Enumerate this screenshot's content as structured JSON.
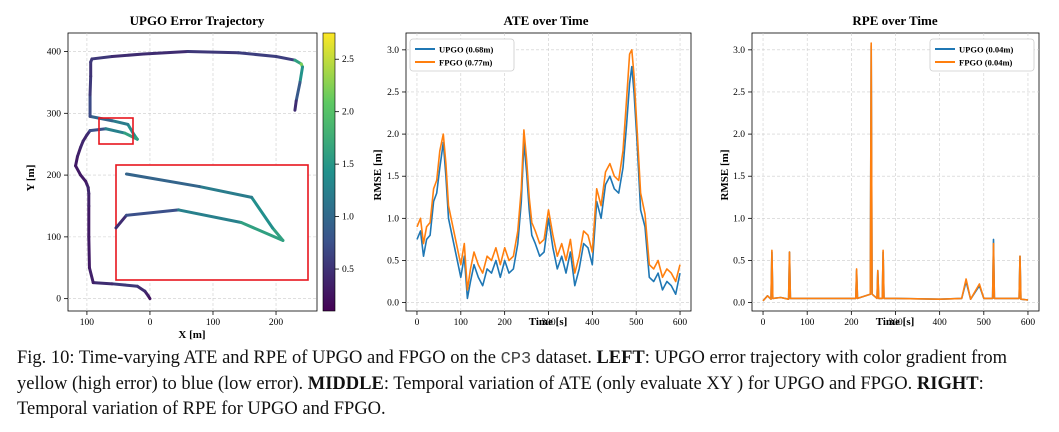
{
  "colors": {
    "upgo": "#1f77b4",
    "fpgo": "#ff7f0e",
    "inset": "#e8161e",
    "grid": "#cccccc"
  },
  "figure": {
    "left": {
      "title": "UPGO Error Trajectory",
      "xlabel": "X [m]",
      "ylabel": "Y [m]",
      "xticks": [
        "100",
        "0",
        "100",
        "200"
      ],
      "yticks": [
        "0",
        "100",
        "200",
        "300",
        "400"
      ],
      "colorbar_ticks": [
        "0.5",
        "1.0",
        "1.5",
        "2.0",
        "2.5"
      ]
    },
    "middle": {
      "title": "ATE over Time",
      "xlabel": "Time [s]",
      "ylabel": "RMSE [m]",
      "legend": [
        "UPGO (0.68m)",
        "FPGO (0.77m)"
      ],
      "xticks": [
        "0",
        "100",
        "200",
        "300",
        "400",
        "500",
        "600"
      ],
      "yticks": [
        "0.0",
        "0.5",
        "1.0",
        "1.5",
        "2.0",
        "2.5",
        "3.0"
      ]
    },
    "right": {
      "title": "RPE over Time",
      "xlabel": "Time [s]",
      "ylabel": "RMSE [m]",
      "legend": [
        "UPGO (0.04m)",
        "FPGO (0.04m)"
      ],
      "xticks": [
        "0",
        "100",
        "200",
        "300",
        "400",
        "500",
        "600"
      ],
      "yticks": [
        "0.0",
        "0.5",
        "1.0",
        "1.5",
        "2.0",
        "2.5",
        "3.0"
      ]
    }
  },
  "chart_data": [
    {
      "type": "line",
      "title": "UPGO Error Trajectory",
      "xlabel": "X [m]",
      "ylabel": "Y [m]",
      "xlim": [
        -130,
        265
      ],
      "ylim": [
        -20,
        430
      ],
      "colorbar": {
        "label": "",
        "range": [
          0.1,
          2.75
        ]
      },
      "series": [
        {
          "name": "trajectory",
          "x": [
            0,
            -3,
            -8,
            -20,
            -40,
            -60,
            -90,
            -96,
            -97,
            -97,
            -97,
            -98,
            -100,
            -102,
            -110,
            -118,
            -115,
            -110,
            -106,
            -100,
            -95,
            -70,
            -40,
            -20,
            -25,
            -35,
            -60,
            -95,
            -95,
            -94,
            -94,
            -92,
            -60,
            -10,
            60,
            140,
            200,
            230,
            240,
            242,
            238,
            232,
            230
          ],
          "y": [
            0,
            5,
            12,
            20,
            22,
            24,
            26,
            50,
            100,
            150,
            170,
            180,
            185,
            190,
            200,
            215,
            230,
            245,
            255,
            265,
            272,
            275,
            268,
            258,
            265,
            282,
            288,
            295,
            330,
            360,
            383,
            388,
            392,
            396,
            400,
            398,
            392,
            386,
            380,
            375,
            350,
            320,
            305
          ],
          "error": [
            0.2,
            0.3,
            0.4,
            0.5,
            0.6,
            0.5,
            0.4,
            0.3,
            0.3,
            0.3,
            0.4,
            0.4,
            0.4,
            0.3,
            0.3,
            0.3,
            0.3,
            0.4,
            0.4,
            0.4,
            0.5,
            1.0,
            1.5,
            1.7,
            1.5,
            1.3,
            1.1,
            0.8,
            0.6,
            0.5,
            0.5,
            0.6,
            0.5,
            0.4,
            0.5,
            0.6,
            0.6,
            0.6,
            2.6,
            1.8,
            1.1,
            0.6,
            0.3
          ]
        }
      ]
    },
    {
      "type": "line",
      "title": "ATE over Time",
      "xlabel": "Time [s]",
      "ylabel": "RMSE [m]",
      "xlim": [
        -25,
        625
      ],
      "ylim": [
        -0.1,
        3.2
      ],
      "series": [
        {
          "name": "UPGO (0.68m)",
          "x": [
            0,
            8,
            15,
            22,
            30,
            38,
            45,
            52,
            60,
            66,
            72,
            80,
            90,
            100,
            108,
            115,
            122,
            130,
            140,
            150,
            160,
            170,
            180,
            190,
            200,
            210,
            220,
            230,
            238,
            244,
            250,
            256,
            262,
            270,
            280,
            290,
            300,
            310,
            320,
            330,
            340,
            350,
            360,
            370,
            380,
            390,
            400,
            410,
            420,
            430,
            440,
            450,
            460,
            470,
            478,
            485,
            490,
            495,
            502,
            510,
            520,
            530,
            540,
            550,
            560,
            570,
            580,
            590,
            600
          ],
          "y": [
            0.75,
            0.85,
            0.55,
            0.75,
            0.8,
            1.2,
            1.3,
            1.6,
            1.9,
            1.5,
            1.0,
            0.8,
            0.55,
            0.3,
            0.55,
            0.05,
            0.25,
            0.45,
            0.3,
            0.2,
            0.4,
            0.35,
            0.5,
            0.3,
            0.5,
            0.35,
            0.4,
            0.7,
            1.2,
            1.9,
            1.55,
            1.1,
            0.8,
            0.7,
            0.55,
            0.6,
            1.0,
            0.65,
            0.4,
            0.55,
            0.35,
            0.6,
            0.2,
            0.4,
            0.7,
            0.65,
            0.45,
            1.2,
            1.0,
            1.4,
            1.5,
            1.35,
            1.3,
            1.6,
            2.1,
            2.6,
            2.8,
            2.5,
            1.9,
            1.1,
            0.9,
            0.3,
            0.25,
            0.35,
            0.15,
            0.25,
            0.2,
            0.1,
            0.35
          ]
        },
        {
          "name": "FPGO (0.77m)",
          "x": [
            0,
            8,
            15,
            22,
            30,
            38,
            45,
            52,
            60,
            66,
            72,
            80,
            90,
            100,
            108,
            115,
            122,
            130,
            140,
            150,
            160,
            170,
            180,
            190,
            200,
            210,
            220,
            230,
            238,
            244,
            250,
            256,
            262,
            270,
            280,
            290,
            300,
            310,
            320,
            330,
            340,
            350,
            360,
            370,
            380,
            390,
            400,
            410,
            420,
            430,
            440,
            450,
            460,
            470,
            478,
            485,
            490,
            495,
            502,
            510,
            520,
            530,
            540,
            550,
            560,
            570,
            580,
            590,
            600
          ],
          "y": [
            0.9,
            1.0,
            0.7,
            0.9,
            0.95,
            1.35,
            1.45,
            1.8,
            2.0,
            1.65,
            1.15,
            0.95,
            0.7,
            0.45,
            0.7,
            0.15,
            0.4,
            0.6,
            0.45,
            0.35,
            0.55,
            0.5,
            0.65,
            0.45,
            0.65,
            0.5,
            0.55,
            0.85,
            1.35,
            2.05,
            1.7,
            1.25,
            0.95,
            0.85,
            0.7,
            0.75,
            1.1,
            0.8,
            0.55,
            0.7,
            0.5,
            0.75,
            0.35,
            0.55,
            0.85,
            0.8,
            0.6,
            1.35,
            1.15,
            1.55,
            1.65,
            1.5,
            1.45,
            1.8,
            2.4,
            2.95,
            3.0,
            2.7,
            2.05,
            1.3,
            1.05,
            0.45,
            0.4,
            0.5,
            0.3,
            0.4,
            0.35,
            0.25,
            0.45
          ]
        }
      ]
    },
    {
      "type": "line",
      "title": "RPE over Time",
      "xlabel": "Time [s]",
      "ylabel": "RMSE [m]",
      "xlim": [
        -25,
        625
      ],
      "ylim": [
        -0.1,
        3.2
      ],
      "series": [
        {
          "name": "UPGO (0.04m)",
          "x": [
            0,
            10,
            18,
            20,
            22,
            40,
            58,
            60,
            62,
            100,
            180,
            200,
            210,
            212,
            214,
            243,
            245,
            247,
            258,
            260,
            262,
            270,
            272,
            274,
            300,
            400,
            450,
            460,
            470,
            490,
            500,
            520,
            522,
            524,
            530,
            580,
            582,
            584,
            600
          ],
          "y": [
            0.02,
            0.08,
            0.04,
            0.6,
            0.05,
            0.06,
            0.04,
            0.6,
            0.05,
            0.05,
            0.05,
            0.05,
            0.05,
            0.38,
            0.05,
            0.1,
            3.05,
            0.1,
            0.05,
            0.38,
            0.05,
            0.05,
            0.6,
            0.05,
            0.05,
            0.04,
            0.05,
            0.25,
            0.04,
            0.2,
            0.05,
            0.05,
            0.75,
            0.05,
            0.05,
            0.05,
            0.55,
            0.04,
            0.03
          ]
        },
        {
          "name": "FPGO (0.04m)",
          "x": [
            0,
            10,
            18,
            20,
            22,
            40,
            58,
            60,
            62,
            100,
            180,
            200,
            210,
            212,
            214,
            243,
            245,
            247,
            258,
            260,
            262,
            270,
            272,
            274,
            300,
            400,
            450,
            460,
            470,
            490,
            500,
            520,
            522,
            524,
            530,
            580,
            582,
            584,
            600
          ],
          "y": [
            0.02,
            0.08,
            0.04,
            0.62,
            0.05,
            0.06,
            0.04,
            0.6,
            0.05,
            0.05,
            0.05,
            0.05,
            0.05,
            0.4,
            0.05,
            0.1,
            3.08,
            0.1,
            0.05,
            0.38,
            0.05,
            0.05,
            0.62,
            0.05,
            0.05,
            0.04,
            0.05,
            0.28,
            0.04,
            0.22,
            0.05,
            0.05,
            0.7,
            0.05,
            0.05,
            0.05,
            0.55,
            0.04,
            0.03
          ]
        }
      ]
    }
  ],
  "caption": {
    "prefix": "Fig. 10: Time-varying ATE and RPE of UPGO and FPGO on the ",
    "dataset": "CP3",
    "after_dataset": " dataset. ",
    "left_label": "LEFT",
    "left_text": ": UPGO error trajectory with color gradient from yellow (high error) to blue (low error). ",
    "middle_label": "MIDDLE",
    "middle_text": ": Temporal variation of ATE (only evaluate XY ) for UPGO and FPGO. ",
    "right_label": "RIGHT",
    "right_text": ": Temporal variation of RPE for UPGO and FPGO."
  }
}
